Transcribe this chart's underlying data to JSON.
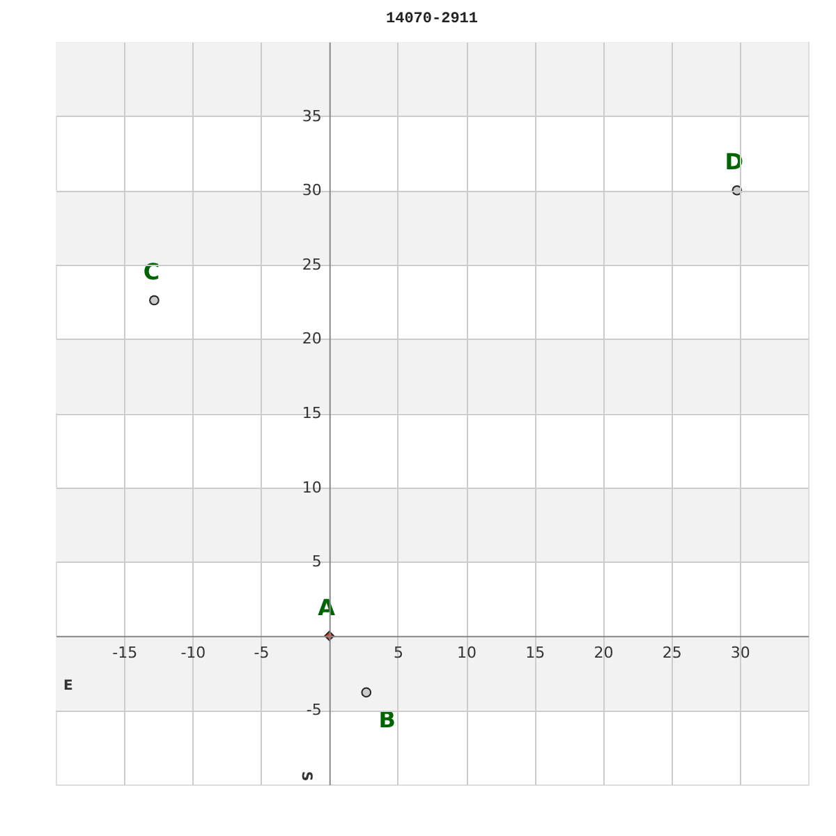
{
  "chart_data": {
    "type": "scatter",
    "title": "14070-2911",
    "xlabel": "E",
    "ylabel": "S",
    "series": [
      {
        "color": "#e8401c",
        "marker": "diamond",
        "x": [
          0
        ],
        "values": [
          0
        ]
      },
      {
        "color": "#cccccc",
        "marker": "circle",
        "x": [
          2.7,
          -12.8,
          29.8
        ],
        "values": [
          -3.8,
          22.6,
          30.0
        ]
      }
    ],
    "annotations": [
      {
        "text": "A",
        "x": 0,
        "y": 0
      },
      {
        "text": "B",
        "x": 2.7,
        "y": -3.8
      },
      {
        "text": "C",
        "x": -12.8,
        "y": 22.6
      },
      {
        "text": "D",
        "x": 29.8,
        "y": 30.0
      }
    ],
    "bands": [
      {
        "axis": "y",
        "from": -5,
        "to": 0,
        "color": "#f2f2f2"
      },
      {
        "axis": "y",
        "from": 5,
        "to": 10,
        "color": "#f2f2f2"
      },
      {
        "axis": "y",
        "from": 15,
        "to": 20,
        "color": "#f2f2f2"
      },
      {
        "axis": "y",
        "from": 25,
        "to": 30,
        "color": "#f2f2f2"
      },
      {
        "axis": "y",
        "from": 35,
        "to": 40,
        "color": "#f2f2f2"
      }
    ],
    "xlim": [
      -20,
      35
    ],
    "xticks": [
      -15,
      -10,
      -5,
      5,
      10,
      15,
      20,
      25,
      30
    ],
    "ylim": [
      -10,
      40
    ],
    "yticks": [
      -5,
      5,
      10,
      15,
      20,
      25,
      30,
      35
    ],
    "grid": true
  }
}
